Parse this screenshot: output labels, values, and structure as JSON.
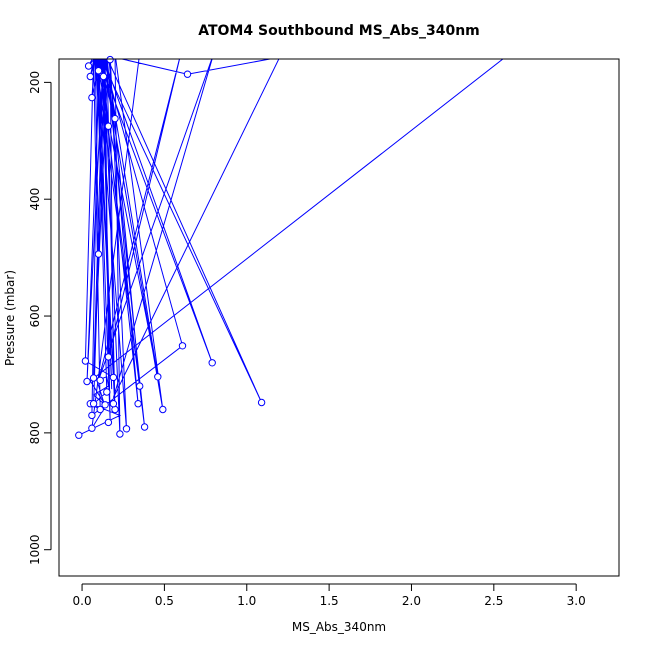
{
  "chart_data": {
    "type": "scatter",
    "title": "ATOM4 Southbound MS_Abs_340nm",
    "xlabel": "MS_Abs_340nm",
    "ylabel": "Pressure (mbar)",
    "xlim": [
      -0.14,
      3.26
    ],
    "ylim": [
      1045,
      160
    ],
    "y_reversed": true,
    "xticks": [
      0.0,
      0.5,
      1.0,
      1.5,
      2.0,
      2.5,
      3.0
    ],
    "xtick_labels": [
      "0.0",
      "0.5",
      "1.0",
      "1.5",
      "2.0",
      "2.5",
      "3.0"
    ],
    "yticks": [
      200,
      400,
      600,
      800,
      1000
    ],
    "ytick_labels": [
      "200",
      "400",
      "600",
      "800",
      "1000"
    ],
    "grid": false,
    "colors": {
      "series": "#0000ff",
      "axis": "#000000",
      "background": "#ffffff"
    },
    "series": [
      {
        "points": [
          [
            -0.02,
            804
          ],
          [
            0.23,
            770
          ],
          [
            0.05,
            750
          ],
          [
            0.11,
            760
          ],
          [
            0.07,
            150
          ],
          [
            0.02,
            677
          ],
          [
            0.19,
            705
          ],
          [
            0.09,
            150
          ],
          [
            0.15,
            730
          ],
          [
            0.07,
            750
          ],
          [
            0.14,
            150
          ],
          [
            0.38,
            790
          ],
          [
            0.1,
            150
          ],
          [
            0.06,
            770
          ],
          [
            0.61,
            651
          ],
          [
            0.12,
            150
          ],
          [
            0.79,
            680
          ],
          [
            0.09,
            150
          ],
          [
            0.2,
            760
          ],
          [
            0.15,
            150
          ],
          [
            0.34,
            750
          ],
          [
            0.11,
            150
          ],
          [
            0.03,
            712
          ],
          [
            0.13,
            150
          ],
          [
            0.07,
            706
          ],
          [
            0.16,
            150
          ],
          [
            0.35,
            720
          ],
          [
            0.08,
            150
          ],
          [
            0.46,
            704
          ],
          [
            0.14,
            150
          ],
          [
            1.09,
            748
          ],
          [
            0.1,
            150
          ],
          [
            0.18,
            725
          ],
          [
            0.12,
            150
          ],
          [
            0.49,
            760
          ],
          [
            0.2,
            150
          ],
          [
            0.23,
            802
          ],
          [
            0.13,
            150
          ],
          [
            0.17,
            777
          ],
          [
            0.09,
            150
          ],
          [
            0.27,
            793
          ],
          [
            0.17,
            150
          ],
          [
            0.19,
            707
          ],
          [
            0.08,
            150
          ],
          [
            0.1,
            494
          ],
          [
            0.14,
            150
          ],
          [
            0.16,
            670
          ],
          [
            0.6,
            150
          ],
          [
            0.1,
            710
          ],
          [
            0.8,
            150
          ],
          [
            0.19,
            740
          ],
          [
            1.2,
            157
          ],
          [
            0.64,
            186
          ],
          [
            0.09,
            150
          ],
          [
            0.2,
            262
          ],
          [
            0.11,
            150
          ],
          [
            0.16,
            275
          ],
          [
            0.12,
            150
          ],
          [
            0.06,
            226
          ],
          [
            0.08,
            150
          ],
          [
            0.05,
            190
          ],
          [
            0.09,
            150
          ],
          [
            0.13,
            190
          ],
          [
            0.1,
            150
          ],
          [
            0.04,
            172
          ],
          [
            0.08,
            150
          ],
          [
            0.17,
            161
          ],
          [
            0.35,
            150
          ],
          [
            0.06,
            792
          ],
          [
            0.14,
            755
          ],
          [
            0.09,
            710
          ],
          [
            0.15,
            704
          ],
          [
            0.16,
            720
          ],
          [
            0.07,
            735
          ],
          [
            0.11,
            745
          ],
          [
            0.14,
            752
          ],
          [
            0.05,
            711
          ],
          [
            2.6,
            150
          ]
        ],
        "markers": [
          [
            -0.02,
            804
          ],
          [
            0.23,
            802
          ],
          [
            0.27,
            793
          ],
          [
            0.06,
            792
          ],
          [
            0.38,
            790
          ],
          [
            0.16,
            782
          ],
          [
            0.06,
            770
          ],
          [
            0.11,
            760
          ],
          [
            0.2,
            760
          ],
          [
            0.49,
            760
          ],
          [
            0.05,
            750
          ],
          [
            0.07,
            750
          ],
          [
            0.34,
            750
          ],
          [
            0.19,
            750
          ],
          [
            1.09,
            748
          ],
          [
            0.14,
            752
          ],
          [
            0.35,
            720
          ],
          [
            0.15,
            730
          ],
          [
            0.03,
            712
          ],
          [
            0.07,
            706
          ],
          [
            0.19,
            705
          ],
          [
            0.11,
            710
          ],
          [
            0.46,
            704
          ],
          [
            0.02,
            677
          ],
          [
            0.16,
            670
          ],
          [
            0.79,
            680
          ],
          [
            0.61,
            651
          ],
          [
            0.1,
            494
          ],
          [
            0.2,
            262
          ],
          [
            0.16,
            275
          ],
          [
            0.06,
            226
          ],
          [
            0.05,
            190
          ],
          [
            0.13,
            190
          ],
          [
            0.64,
            186
          ],
          [
            0.04,
            172
          ],
          [
            0.17,
            161
          ],
          [
            0.1,
            180
          ]
        ]
      }
    ]
  }
}
